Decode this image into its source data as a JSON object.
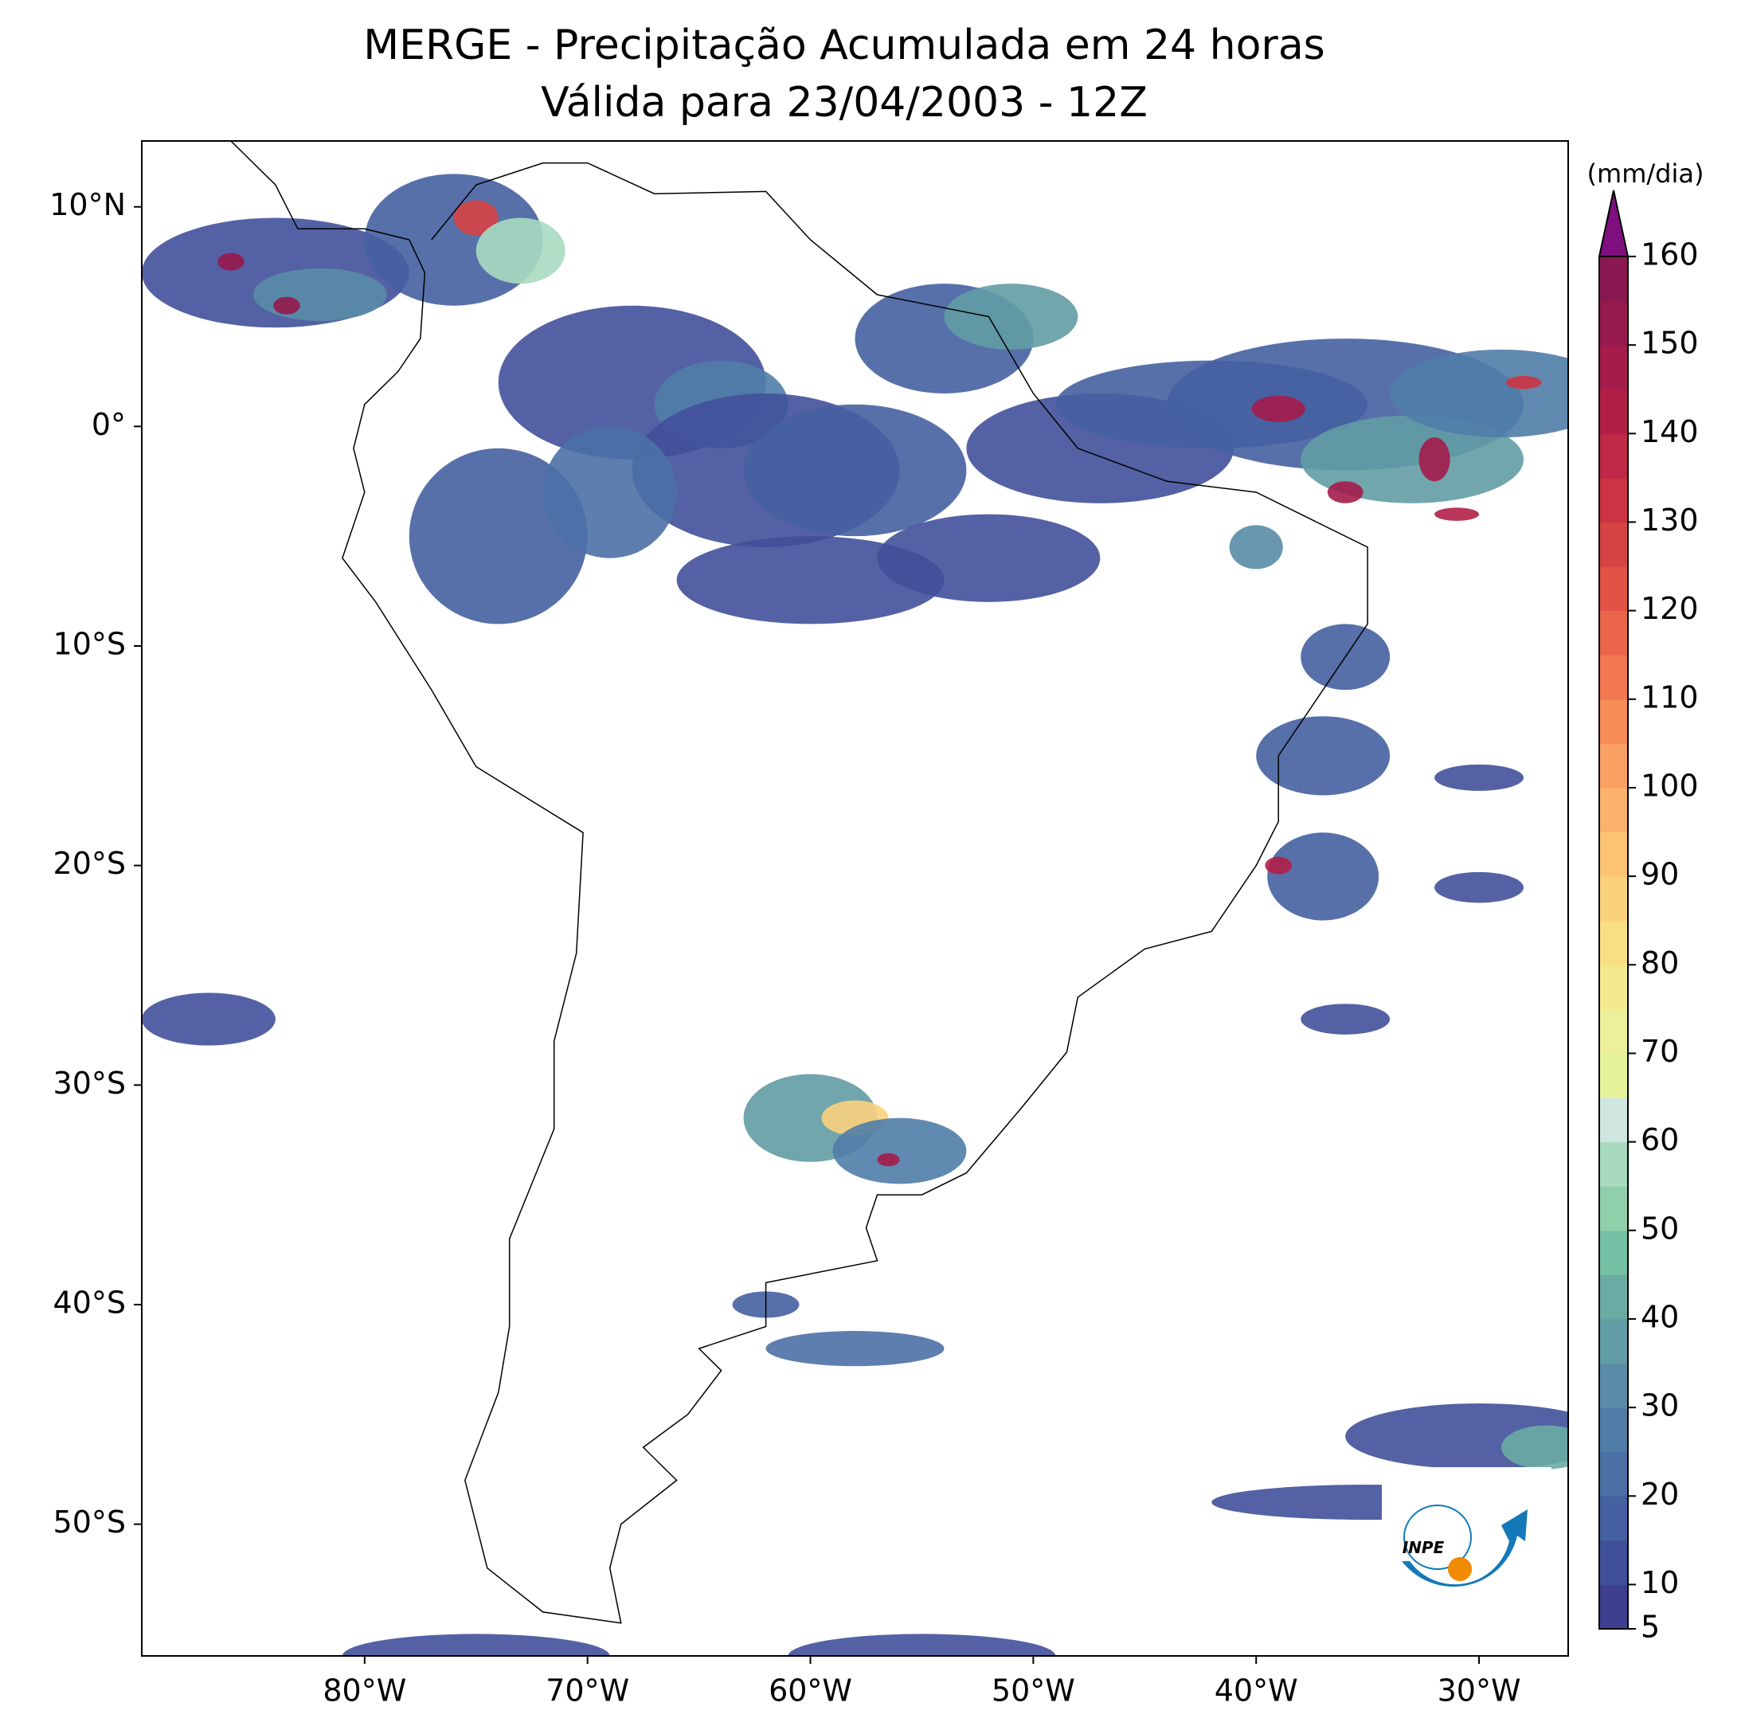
{
  "chart_data": {
    "type": "map",
    "title": "MERGE - Precipitação Acumulada em 24 horas",
    "subtitle": "Válida para 23/04/2003 - 12Z",
    "xlim": [
      -90,
      -26
    ],
    "ylim": [
      -56,
      13
    ],
    "xticks": [
      {
        "value": -80,
        "label": "80°W"
      },
      {
        "value": -70,
        "label": "70°W"
      },
      {
        "value": -60,
        "label": "60°W"
      },
      {
        "value": -50,
        "label": "50°W"
      },
      {
        "value": -40,
        "label": "40°W"
      },
      {
        "value": -30,
        "label": "30°W"
      }
    ],
    "yticks": [
      {
        "value": 10,
        "label": "10°N"
      },
      {
        "value": 0,
        "label": "0°"
      },
      {
        "value": -10,
        "label": "10°S"
      },
      {
        "value": -20,
        "label": "20°S"
      },
      {
        "value": -30,
        "label": "30°S"
      },
      {
        "value": -40,
        "label": "40°S"
      },
      {
        "value": -50,
        "label": "50°S"
      }
    ],
    "colorbar": {
      "label": "(mm/dia)",
      "lim": [
        5,
        160
      ],
      "ticks": [
        5,
        10,
        20,
        30,
        40,
        50,
        60,
        70,
        80,
        90,
        100,
        110,
        120,
        130,
        140,
        150,
        160
      ],
      "colors": [
        "#3e3f8f",
        "#41509a",
        "#4561a1",
        "#4b70a6",
        "#507da8",
        "#5a8ca7",
        "#629ca4",
        "#6aaca3",
        "#76c0a6",
        "#8fd0ab",
        "#a8dac0",
        "#cfe6e0",
        "#e6f29a",
        "#edf09a",
        "#f3e98c",
        "#f8df84",
        "#fbd27c",
        "#fcc373",
        "#fbb26a",
        "#f9a062",
        "#f68d59",
        "#f27851",
        "#eb654a",
        "#e25245",
        "#d64343",
        "#cc3444",
        "#bf2846",
        "#b11f48",
        "#a41c4a",
        "#961a4d",
        "#8a1850"
      ],
      "extend_color": "#7f0f7e"
    },
    "logo_text": "INPE"
  }
}
